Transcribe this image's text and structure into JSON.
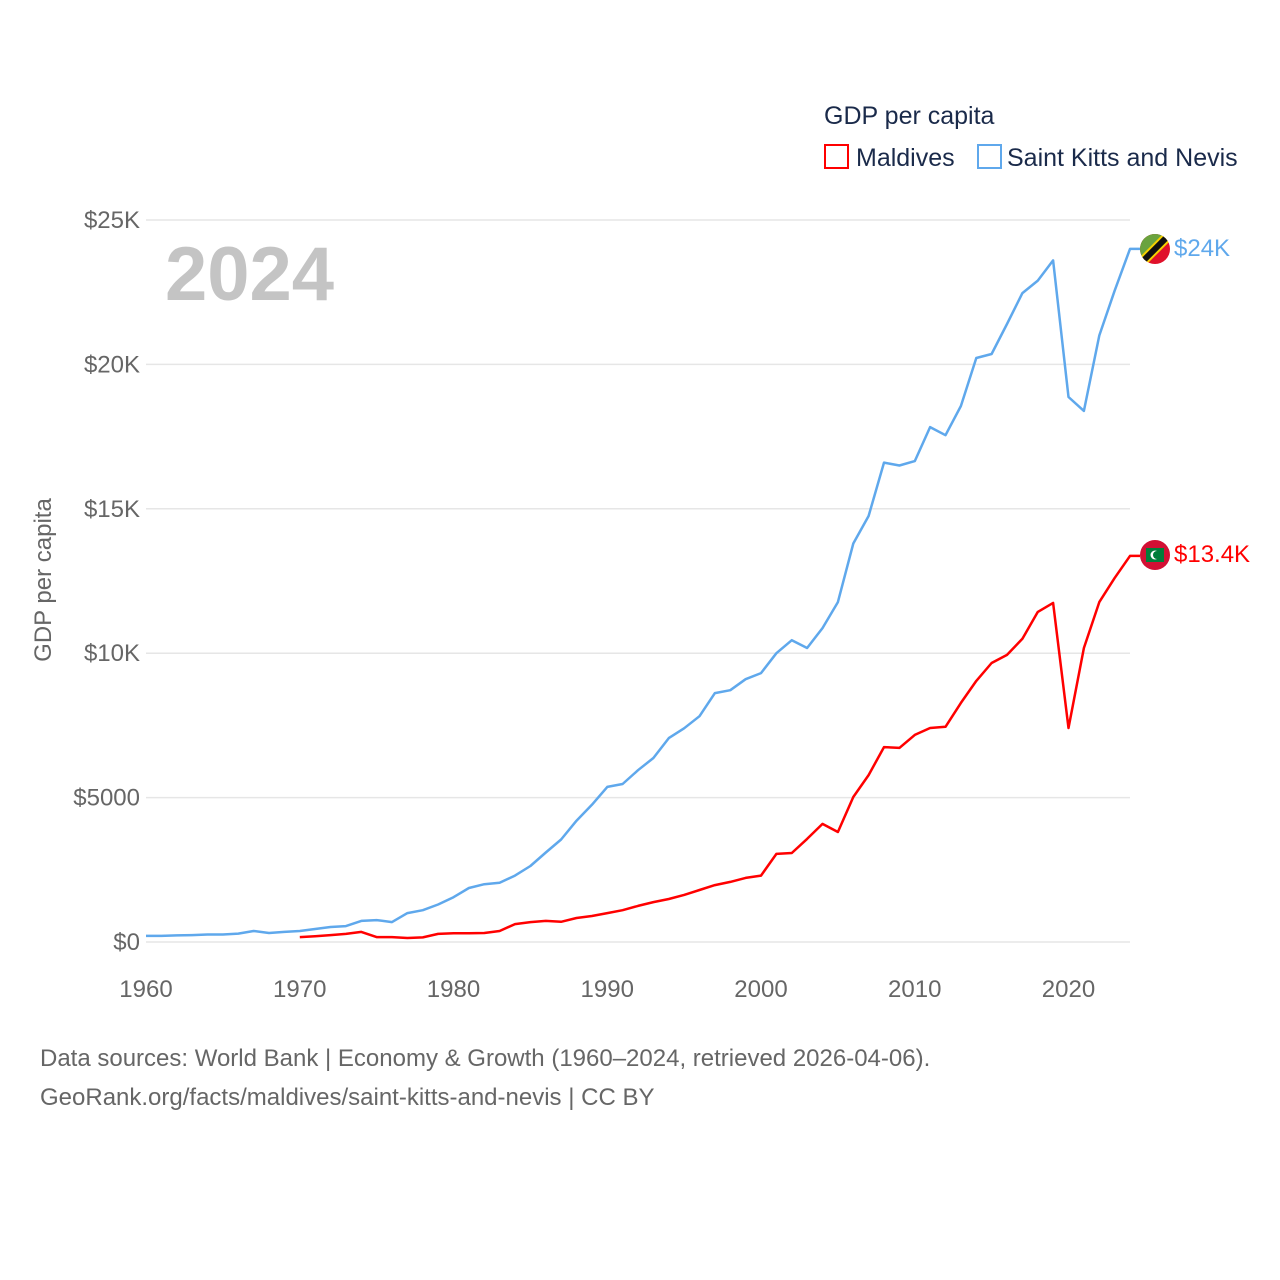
{
  "chart_data": {
    "type": "line",
    "year_label": "2024",
    "ylabel": "GDP per capita",
    "legend_title": "GDP per capita",
    "legend_placement": "top-right",
    "xlim": [
      1960,
      2024
    ],
    "ylim": [
      0,
      25000
    ],
    "x_ticks": [
      1960,
      1970,
      1980,
      1990,
      2000,
      2010,
      2020
    ],
    "x_tick_labels": [
      "1960",
      "1970",
      "1980",
      "1990",
      "2000",
      "2010",
      "2020"
    ],
    "y_ticks": [
      0,
      5000,
      10000,
      15000,
      20000,
      25000
    ],
    "y_tick_labels": [
      "$0",
      "$5000",
      "$10K",
      "$15K",
      "$20K",
      "$25K"
    ],
    "grid": true,
    "series": [
      {
        "name": "Maldives",
        "color": "#ff0000",
        "end_label": "$13.4K",
        "start_year": 1970,
        "values": [
          170,
          200,
          240,
          280,
          350,
          170,
          170,
          140,
          160,
          280,
          300,
          300,
          310,
          380,
          620,
          690,
          730,
          700,
          830,
          900,
          1000,
          1100,
          1250,
          1380,
          1490,
          1630,
          1800,
          1970,
          2080,
          2220,
          2300,
          3050,
          3080,
          3570,
          4090,
          3810,
          5020,
          5780,
          6750,
          6720,
          7170,
          7410,
          7450,
          8280,
          9040,
          9660,
          9940,
          10500,
          11430,
          11740,
          7410,
          10180,
          11770,
          12600,
          13370
        ]
      },
      {
        "name": "Saint Kitts and Nevis",
        "color": "#5fa8ec",
        "end_label": "$24K",
        "start_year": 1960,
        "values": [
          210,
          210,
          230,
          240,
          260,
          260,
          290,
          380,
          310,
          350,
          380,
          450,
          520,
          550,
          730,
          760,
          690,
          1000,
          1100,
          1300,
          1550,
          1870,
          2000,
          2050,
          2300,
          2630,
          3100,
          3550,
          4200,
          4750,
          5370,
          5470,
          5950,
          6370,
          7060,
          7400,
          7820,
          8620,
          8720,
          9100,
          9310,
          10000,
          10450,
          10180,
          10870,
          11770,
          13800,
          14750,
          16600,
          16500,
          16650,
          17830,
          17550,
          18560,
          20220,
          20360,
          21400,
          22470,
          22900,
          23600,
          18870,
          18390,
          21000,
          22550,
          24000
        ]
      }
    ]
  },
  "footer": {
    "line1": "Data sources: World Bank | Economy & Growth (1960–2024, retrieved 2026-04-06).",
    "line2": "GeoRank.org/facts/maldives/saint-kitts-and-nevis | CC BY"
  }
}
